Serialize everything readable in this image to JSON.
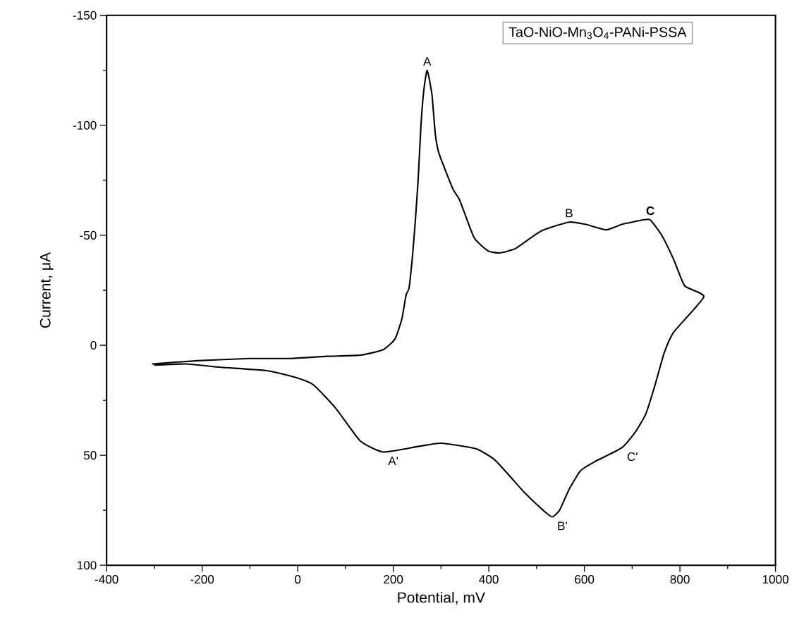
{
  "chart_data": {
    "type": "line",
    "xlabel": "Potential, mV",
    "ylabel": "Current, μA",
    "xlim": [
      -400,
      1000
    ],
    "xticks": [
      -400,
      -200,
      0,
      200,
      400,
      600,
      800,
      1000
    ],
    "ylim": [
      100,
      -150
    ],
    "yticks": [
      -150,
      -100,
      -50,
      0,
      50,
      100
    ],
    "grid": false,
    "marker": "none",
    "line_style": "solid",
    "series": [
      {
        "color": "#000000",
        "x": [
          -305,
          -210,
          -100,
          -15,
          60,
          131,
          179,
          204,
          218,
          227,
          233,
          240,
          246,
          252,
          258,
          264,
          271,
          281,
          288,
          296,
          325,
          339,
          369,
          398,
          422,
          456,
          510,
          568,
          602,
          646,
          679,
          723,
          738,
          762,
          787,
          810,
          850,
          787,
          767,
          748,
          729,
          708,
          679,
          621,
          592,
          568,
          548,
          533,
          519,
          475,
          446,
          412,
          373,
          300,
          252,
          179,
          131,
          81,
          33,
          -6,
          -65,
          -161,
          -234,
          -300
        ],
        "values": [
          8.5,
          7,
          6,
          6,
          5,
          4.5,
          2,
          -3,
          -12,
          -23,
          -26,
          -40,
          -56,
          -75,
          -100,
          -116,
          -125,
          -114,
          -96,
          -87,
          -71,
          -66,
          -49,
          -43,
          -42,
          -44,
          -52,
          -56,
          -55,
          -52.5,
          -55,
          -57,
          -57,
          -50,
          -39,
          -27,
          -22,
          -6,
          3.5,
          18,
          31,
          39,
          46.5,
          53,
          57,
          65.5,
          75,
          78,
          76,
          67,
          60,
          52,
          47,
          44.5,
          46,
          48.5,
          43.5,
          29,
          18,
          14.5,
          11.5,
          10,
          8.5,
          9
        ]
      }
    ],
    "annotations": [
      "TaO-NiO-Mn$_{3}$O$_{4}$-PANi-PSSA",
      {
        "text": "A",
        "x": 271,
        "y": -125
      },
      {
        "text": "B",
        "x": 568,
        "y": -56
      },
      {
        "text": "**C**",
        "x": 738,
        "y": -57
      },
      {
        "text": "A'",
        "x": 179,
        "y": 48.5
      },
      {
        "text": "B'",
        "x": 533,
        "y": 78
      },
      {
        "text": "C'",
        "x": 679,
        "y": 46.5
      }
    ]
  }
}
